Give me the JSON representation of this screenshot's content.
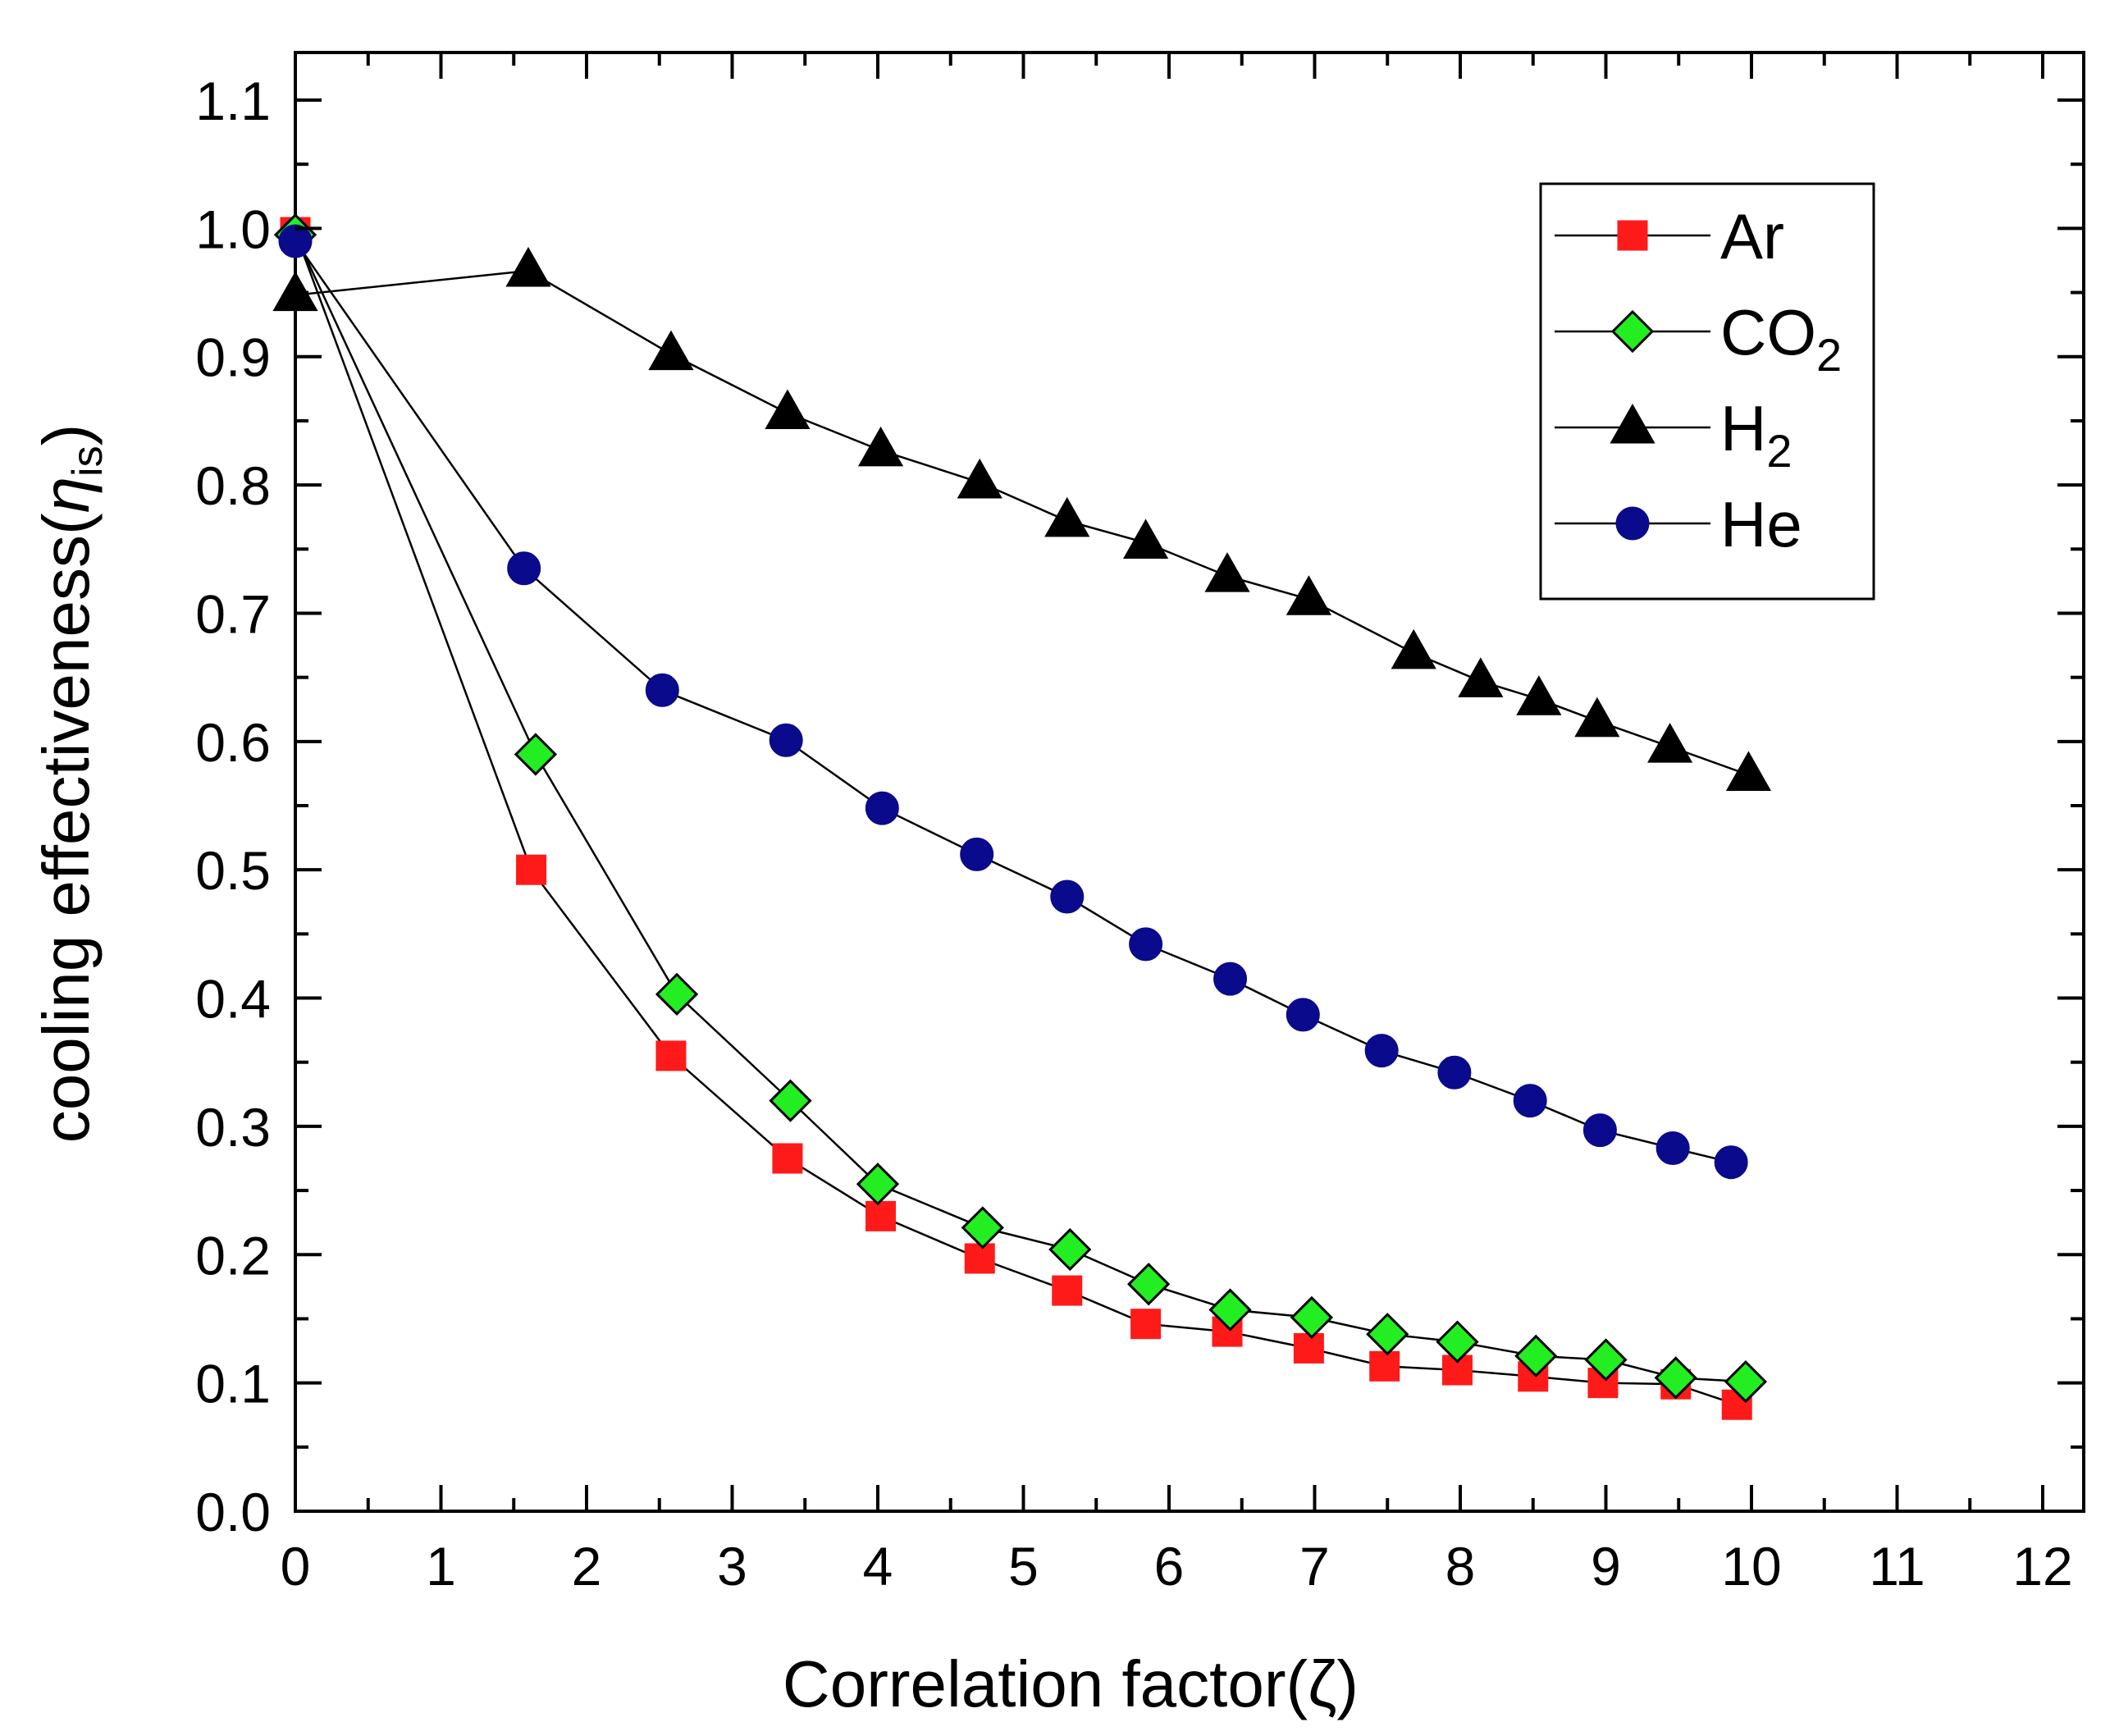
{
  "chart_data": {
    "type": "line",
    "title": "",
    "xlabel": "Correlation factor(ζ)",
    "ylabel": {
      "prefix": "cooling effectiveness(",
      "symbol": "η",
      "subscript": "is",
      "suffix": ")"
    },
    "xlim": [
      0,
      12.3
    ],
    "ylim": [
      0,
      1.1
    ],
    "x_ticks": [
      "0",
      "1",
      "2",
      "3",
      "4",
      "5",
      "6",
      "7",
      "8",
      "9",
      "10",
      "11",
      "12"
    ],
    "y_ticks": [
      "0.0",
      "0.1",
      "0.2",
      "0.3",
      "0.4",
      "0.5",
      "0.6",
      "0.7",
      "0.8",
      "0.9",
      "1.0",
      "1.1"
    ],
    "grid": false,
    "legend_position": "top-right",
    "series": [
      {
        "name": "Ar",
        "sub": "",
        "marker": "square",
        "color": "#ff1a1a",
        "x": [
          0,
          1.62,
          2.58,
          3.38,
          4.02,
          4.7,
          5.3,
          5.84,
          6.4,
          6.96,
          7.48,
          7.98,
          8.5,
          8.98,
          9.48,
          9.9
        ],
        "y": [
          0.997,
          0.5,
          0.355,
          0.275,
          0.23,
          0.197,
          0.172,
          0.146,
          0.14,
          0.127,
          0.113,
          0.11,
          0.105,
          0.1,
          0.099,
          0.083
        ]
      },
      {
        "name": "CO",
        "sub": "2",
        "marker": "diamond",
        "color": "#22ee22",
        "x": [
          0,
          1.65,
          2.62,
          3.4,
          4.0,
          4.72,
          5.32,
          5.86,
          6.42,
          6.98,
          7.5,
          7.98,
          8.52,
          9.0,
          9.48,
          9.96
        ],
        "y": [
          0.995,
          0.59,
          0.403,
          0.32,
          0.255,
          0.221,
          0.204,
          0.177,
          0.157,
          0.151,
          0.138,
          0.132,
          0.121,
          0.118,
          0.104,
          0.101
        ]
      },
      {
        "name": "H",
        "sub": "2",
        "marker": "triangle",
        "color": "#000000",
        "x": [
          0,
          1.6,
          2.58,
          3.38,
          4.02,
          4.7,
          5.3,
          5.84,
          6.4,
          6.96,
          7.68,
          8.14,
          8.54,
          8.94,
          9.44,
          9.98
        ],
        "y": [
          0.948,
          0.967,
          0.902,
          0.856,
          0.827,
          0.802,
          0.772,
          0.755,
          0.729,
          0.711,
          0.669,
          0.647,
          0.633,
          0.616,
          0.596,
          0.574
        ]
      },
      {
        "name": "He",
        "sub": "",
        "marker": "circle",
        "color": "#0a0a8c",
        "x": [
          0,
          1.57,
          2.52,
          3.37,
          4.03,
          4.68,
          5.3,
          5.84,
          6.42,
          6.92,
          7.46,
          7.96,
          8.48,
          8.96,
          9.46,
          9.86
        ],
        "y": [
          0.99,
          0.735,
          0.64,
          0.601,
          0.548,
          0.512,
          0.479,
          0.442,
          0.415,
          0.387,
          0.359,
          0.342,
          0.32,
          0.297,
          0.283,
          0.272
        ]
      }
    ]
  }
}
